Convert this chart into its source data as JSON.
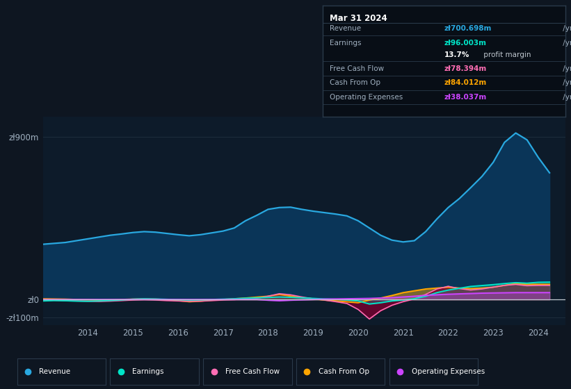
{
  "background_color": "#0e1621",
  "plot_bg_color": "#0d1b2a",
  "ytick_labels": [
    "zł900m",
    "zł0",
    "-zł100m"
  ],
  "ytick_values": [
    900,
    0,
    -100
  ],
  "xlim": [
    2013.0,
    2024.6
  ],
  "ylim": [
    -140,
    1010
  ],
  "years": [
    2013.0,
    2013.25,
    2013.5,
    2013.75,
    2014.0,
    2014.25,
    2014.5,
    2014.75,
    2015.0,
    2015.25,
    2015.5,
    2015.75,
    2016.0,
    2016.25,
    2016.5,
    2016.75,
    2017.0,
    2017.25,
    2017.5,
    2017.75,
    2018.0,
    2018.25,
    2018.5,
    2018.75,
    2019.0,
    2019.25,
    2019.5,
    2019.75,
    2020.0,
    2020.25,
    2020.5,
    2020.75,
    2021.0,
    2021.25,
    2021.5,
    2021.75,
    2022.0,
    2022.25,
    2022.5,
    2022.75,
    2023.0,
    2023.25,
    2023.5,
    2023.75,
    2024.0,
    2024.25
  ],
  "revenue": [
    305,
    310,
    315,
    325,
    335,
    345,
    355,
    362,
    370,
    375,
    372,
    365,
    358,
    352,
    358,
    368,
    378,
    395,
    435,
    465,
    498,
    508,
    510,
    498,
    488,
    480,
    472,
    462,
    435,
    395,
    355,
    328,
    318,
    325,
    375,
    445,
    508,
    558,
    618,
    680,
    758,
    868,
    920,
    882,
    785,
    700
  ],
  "earnings": [
    -8,
    -6,
    -7,
    -9,
    -10,
    -8,
    -6,
    -3,
    2,
    4,
    3,
    1,
    -1,
    -3,
    -2,
    0,
    2,
    4,
    7,
    9,
    11,
    14,
    12,
    9,
    6,
    3,
    1,
    -3,
    -8,
    -25,
    -18,
    -8,
    -3,
    4,
    18,
    38,
    52,
    62,
    72,
    77,
    82,
    88,
    93,
    90,
    95,
    96
  ],
  "free_cash_flow": [
    -2,
    -4,
    -6,
    -8,
    -10,
    -11,
    -9,
    -6,
    -3,
    -1,
    -3,
    -6,
    -8,
    -10,
    -9,
    -6,
    -3,
    -1,
    3,
    6,
    18,
    32,
    26,
    14,
    4,
    -3,
    -12,
    -22,
    -55,
    -108,
    -62,
    -32,
    -12,
    3,
    28,
    58,
    73,
    60,
    52,
    58,
    68,
    78,
    83,
    76,
    78,
    78
  ],
  "cash_from_op": [
    4,
    3,
    2,
    0,
    -1,
    -3,
    -2,
    0,
    2,
    4,
    2,
    -1,
    -6,
    -12,
    -9,
    -4,
    0,
    4,
    8,
    13,
    18,
    28,
    19,
    10,
    4,
    -3,
    -8,
    -13,
    -18,
    -3,
    8,
    22,
    38,
    48,
    58,
    63,
    68,
    63,
    60,
    63,
    68,
    78,
    88,
    84,
    84,
    84
  ],
  "op_expenses": [
    0,
    0,
    0,
    0,
    0,
    0,
    0,
    0,
    0,
    0,
    0,
    0,
    0,
    0,
    0,
    0,
    0,
    0,
    0,
    0,
    -4,
    -7,
    -4,
    -2,
    0,
    2,
    3,
    4,
    5,
    6,
    8,
    10,
    14,
    18,
    23,
    26,
    29,
    31,
    33,
    35,
    36,
    37,
    38,
    38,
    38,
    38
  ],
  "revenue_color": "#29a8e0",
  "revenue_fill": "#0a3558",
  "earnings_color": "#00e5c8",
  "fcf_color": "#ff6eb4",
  "cashop_color": "#ffa500",
  "opex_color": "#cc44ff",
  "zero_line_color": "#c0c8d0",
  "grid_color": "#1e2d3d",
  "info_box_bg": "#080e16",
  "info_box_border": "#2a3a4a",
  "legend_bg": "#0e1621",
  "legend_border": "#2a3a4a",
  "xtick_labels": [
    "2014",
    "2015",
    "2016",
    "2017",
    "2018",
    "2019",
    "2020",
    "2021",
    "2022",
    "2023",
    "2024"
  ],
  "xtick_values": [
    2014,
    2015,
    2016,
    2017,
    2018,
    2019,
    2020,
    2021,
    2022,
    2023,
    2024
  ],
  "info_title": "Mar 31 2024",
  "info_rows": [
    {
      "label": "Revenue",
      "value": "zł700.698m",
      "suffix": " /yr",
      "value_color": "#29a8e0"
    },
    {
      "label": "Earnings",
      "value": "zł96.003m",
      "suffix": " /yr",
      "value_color": "#00e5c8"
    },
    {
      "label": "",
      "value": "13.7%",
      "suffix": " profit margin",
      "value_color": "#ffffff"
    },
    {
      "label": "Free Cash Flow",
      "value": "zł78.394m",
      "suffix": " /yr",
      "value_color": "#ff6eb4"
    },
    {
      "label": "Cash From Op",
      "value": "zł84.012m",
      "suffix": " /yr",
      "value_color": "#ffa500"
    },
    {
      "label": "Operating Expenses",
      "value": "zł38.037m",
      "suffix": " /yr",
      "value_color": "#cc44ff"
    }
  ],
  "legend_items": [
    {
      "color": "#29a8e0",
      "label": "Revenue"
    },
    {
      "color": "#00e5c8",
      "label": "Earnings"
    },
    {
      "color": "#ff6eb4",
      "label": "Free Cash Flow"
    },
    {
      "color": "#ffa500",
      "label": "Cash From Op"
    },
    {
      "color": "#cc44ff",
      "label": "Operating Expenses"
    }
  ]
}
